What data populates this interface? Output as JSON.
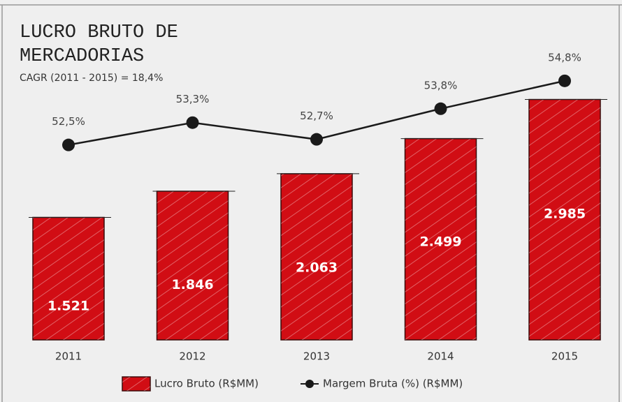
{
  "chart_data": {
    "type": "bar",
    "title": [
      "LUCRO BRUTO DE",
      "MERCADORIAS"
    ],
    "subtitle": "CAGR (2011 - 2015) = 18,4%",
    "categories": [
      "2011",
      "2012",
      "2013",
      "2014",
      "2015"
    ],
    "series": [
      {
        "name": "Lucro Bruto (R$MM)",
        "color": "#d10d14",
        "values": [
          1521,
          1846,
          2063,
          2499,
          2985
        ],
        "value_labels": [
          "1.521",
          "1.846",
          "2.063",
          "2.499",
          "2.985"
        ]
      },
      {
        "name": "Margem Bruta (%) (R$MM)",
        "color": "#1a1a1a",
        "axis": "y2",
        "values": [
          52.5,
          53.3,
          52.7,
          53.8,
          54.8
        ],
        "value_labels": [
          "52,5%",
          "53,3%",
          "52,7%",
          "53,8%",
          "54,8%"
        ]
      }
    ],
    "ylim": [
      0,
      3700
    ],
    "y2lim": [
      45.5,
      56.2
    ]
  }
}
